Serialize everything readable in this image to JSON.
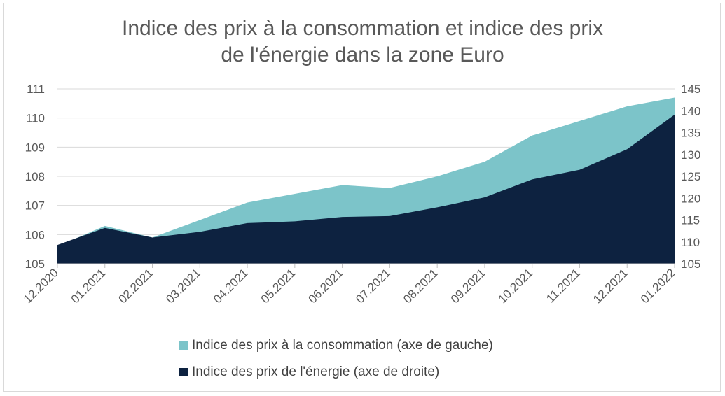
{
  "chart_data": {
    "type": "area",
    "title_lines": [
      "Indice des prix à la consommation et indice des prix",
      "de l'énergie dans la zone Euro"
    ],
    "categories": [
      "12.2020",
      "01.2021",
      "02.2021",
      "03.2021",
      "04.2021",
      "05.2021",
      "06.2021",
      "07.2021",
      "08.2021",
      "09.2021",
      "10.2021",
      "11.2021",
      "12.2021",
      "01.2022"
    ],
    "y_left_ticks": [
      "111",
      "110",
      "109",
      "108",
      "107",
      "106",
      "105"
    ],
    "y_right_ticks": [
      "145",
      "140",
      "135",
      "130",
      "125",
      "120",
      "115",
      "110",
      "105"
    ],
    "y_left_range": [
      105,
      111
    ],
    "y_right_range": [
      105,
      145
    ],
    "grid": true,
    "legend_position": "bottom",
    "series": [
      {
        "name": "Indice des prix à la consommation (axe de gauche)",
        "axis": "left",
        "color": "#7cc4c9",
        "values": [
          105.6,
          106.3,
          105.9,
          106.5,
          107.1,
          107.4,
          107.7,
          107.6,
          108.0,
          108.5,
          109.4,
          109.9,
          110.4,
          110.7
        ]
      },
      {
        "name": "Indice des prix de l'énergie (axe de droite)",
        "axis": "right",
        "color": "#0d2240",
        "values": [
          109.3,
          113.2,
          111.0,
          112.3,
          114.3,
          114.7,
          115.7,
          115.9,
          117.9,
          120.2,
          124.3,
          126.5,
          131.2,
          139.1
        ]
      }
    ]
  }
}
